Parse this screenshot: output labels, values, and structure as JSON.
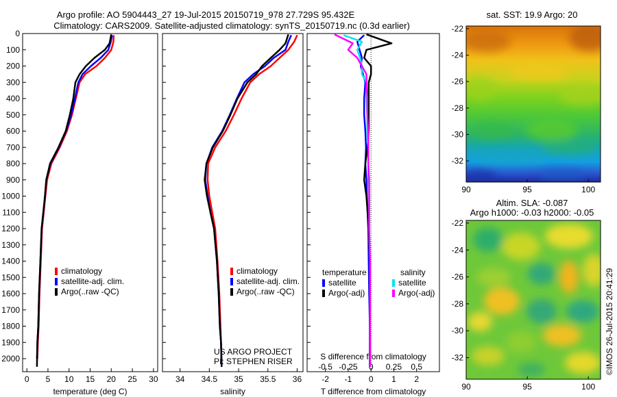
{
  "title": {
    "line1": "Argo profile: AO 5904443_27 19-Jul-2015 20150719_978 27.729S 95.432E",
    "line2": "Climatology: CARS2009. Satellite-adjusted climatology: synTS_20150719.nc (0.3d earlier)"
  },
  "colors": {
    "climatology": "#ff0000",
    "satellite": "#0000ff",
    "argo": "#000000",
    "sal_sat": "#00e5ee",
    "sal_argo": "#ff00ff"
  },
  "chart_data": [
    {
      "type": "line",
      "xlabel": "temperature (deg C)",
      "ylabel": "",
      "xlim": [
        -1,
        31
      ],
      "ylim": [
        2080,
        0
      ],
      "y_reversed": true,
      "xticks": [
        0,
        5,
        10,
        15,
        20,
        25,
        30
      ],
      "yticks": [
        0,
        100,
        200,
        300,
        400,
        500,
        600,
        700,
        800,
        900,
        1000,
        1100,
        1200,
        1300,
        1400,
        1500,
        1600,
        1700,
        1800,
        1900,
        2000
      ],
      "legend": [
        "climatology",
        "satellite-adj. clim.",
        "Argo(..raw -QC)"
      ],
      "series": [
        {
          "name": "climatology",
          "color": "#ff0000",
          "x": [
            20.6,
            20.5,
            20.0,
            18.5,
            16.5,
            13.8,
            12.5,
            11.6,
            10.7,
            9.5,
            7.8,
            5.8,
            4.8,
            4.4,
            4.0,
            3.6,
            3.3,
            3.0,
            2.8,
            2.6,
            2.5
          ],
          "y": [
            10,
            50,
            100,
            150,
            200,
            250,
            300,
            400,
            500,
            600,
            700,
            800,
            900,
            1000,
            1100,
            1200,
            1400,
            1600,
            1800,
            1900,
            2000
          ]
        },
        {
          "name": "satellite-adj. clim.",
          "color": "#0000ff",
          "x": [
            20.2,
            19.9,
            19.3,
            17.5,
            15.2,
            13.2,
            12.2,
            11.4,
            10.5,
            9.3,
            7.6,
            5.6,
            4.6,
            4.3,
            3.9,
            3.5,
            3.2,
            2.9,
            2.7,
            2.5,
            2.4
          ],
          "y": [
            10,
            50,
            100,
            150,
            200,
            250,
            300,
            400,
            500,
            600,
            700,
            800,
            900,
            1000,
            1100,
            1200,
            1400,
            1600,
            1800,
            1900,
            2000
          ]
        },
        {
          "name": "Argo(..raw -QC)",
          "color": "#000000",
          "x": [
            20.0,
            19.6,
            18.5,
            16.0,
            14.0,
            12.5,
            11.5,
            11.0,
            10.2,
            9.2,
            7.5,
            5.5,
            4.6,
            4.3,
            3.9,
            3.5,
            3.2,
            2.9,
            2.7,
            2.5,
            2.4
          ],
          "y": [
            5,
            60,
            100,
            150,
            200,
            250,
            300,
            400,
            500,
            600,
            700,
            800,
            900,
            1000,
            1100,
            1200,
            1400,
            1600,
            1800,
            1900,
            2050
          ]
        }
      ]
    },
    {
      "type": "line",
      "xlabel": "salinity",
      "xlim": [
        33.7,
        36.1
      ],
      "ylim": [
        2080,
        0
      ],
      "y_reversed": true,
      "xticks": [
        34,
        34.5,
        35,
        35.5,
        36
      ],
      "legend": [
        "climatology",
        "satellite-adj. clim.",
        "Argo(..raw -QC)"
      ],
      "annotation": [
        "US ARGO PROJECT",
        "PI: STEPHEN RISER"
      ],
      "series": [
        {
          "name": "climatology",
          "color": "#ff0000",
          "x": [
            36.0,
            35.95,
            35.85,
            35.7,
            35.55,
            35.35,
            35.2,
            35.05,
            34.92,
            34.78,
            34.6,
            34.48,
            34.47,
            34.5,
            34.55,
            34.6,
            34.64,
            34.67,
            34.69,
            34.7,
            34.71
          ],
          "y": [
            10,
            50,
            100,
            150,
            200,
            250,
            300,
            400,
            500,
            600,
            700,
            800,
            900,
            1000,
            1100,
            1200,
            1400,
            1600,
            1800,
            1900,
            2050
          ]
        },
        {
          "name": "satellite-adj. clim.",
          "color": "#0000ff",
          "x": [
            35.9,
            35.85,
            35.8,
            35.6,
            35.45,
            35.25,
            35.1,
            34.97,
            34.85,
            34.72,
            34.55,
            34.45,
            34.43,
            34.47,
            34.52,
            34.58,
            34.63,
            34.66,
            34.68,
            34.7,
            34.71
          ],
          "y": [
            10,
            50,
            100,
            150,
            200,
            250,
            300,
            400,
            500,
            600,
            700,
            800,
            900,
            1000,
            1100,
            1200,
            1400,
            1600,
            1800,
            1900,
            2050
          ]
        },
        {
          "name": "Argo(..raw -QC)",
          "color": "#000000",
          "x": [
            35.85,
            35.8,
            35.7,
            35.55,
            35.4,
            35.3,
            35.15,
            34.98,
            34.86,
            34.73,
            34.56,
            34.45,
            34.42,
            34.46,
            34.52,
            34.58,
            34.63,
            34.66,
            34.68,
            34.7,
            34.71
          ],
          "y": [
            5,
            60,
            100,
            150,
            200,
            250,
            300,
            400,
            500,
            600,
            700,
            800,
            900,
            1000,
            1100,
            1200,
            1400,
            1600,
            1800,
            1900,
            2050
          ]
        }
      ]
    },
    {
      "type": "line",
      "xlabel": "T difference from climatology",
      "x2label": "S difference from climatology",
      "xlim": [
        -2.8,
        3.0
      ],
      "ylim": [
        2080,
        0
      ],
      "y_reversed": true,
      "xticks": [
        -2,
        -1,
        0,
        1,
        2
      ],
      "x2ticks": [
        {
          "v": -0.5,
          "label": "-0.5"
        },
        {
          "v": -0.25,
          "label": "-0.25"
        },
        {
          "v": 0,
          "label": "0"
        },
        {
          "v": 0.25,
          "label": "0.25"
        },
        {
          "v": 0.5,
          "label": "0.5"
        }
      ],
      "legend_t_title": "temperature",
      "legend_s_title": "salinity",
      "legend": [
        "satellite",
        "Argo(-adj)",
        "satellite",
        "Argo(-adj)"
      ],
      "series": [
        {
          "name": "satellite",
          "group": "temperature",
          "color": "#0000ff",
          "x": [
            -0.3,
            -0.6,
            -0.5,
            -0.4,
            -0.45,
            -0.35,
            -0.25,
            -0.3,
            -0.3,
            -0.25,
            -0.22,
            -0.25,
            -0.2,
            -0.18,
            -0.15,
            -0.12,
            -0.1,
            -0.08,
            -0.05,
            -0.05,
            -0.05
          ],
          "y": [
            10,
            50,
            100,
            150,
            200,
            250,
            300,
            400,
            500,
            600,
            700,
            800,
            900,
            1000,
            1100,
            1200,
            1400,
            1600,
            1800,
            1900,
            2050
          ]
        },
        {
          "name": "Argo(-adj)",
          "group": "temperature",
          "color": "#000000",
          "x": [
            -0.2,
            0.9,
            -0.2,
            -0.3,
            0.0,
            0.0,
            -0.1,
            -0.1,
            -0.1,
            -0.1,
            -0.15,
            -0.25,
            -0.3,
            -0.2,
            -0.15,
            -0.1,
            -0.05,
            -0.05,
            -0.05,
            -0.05,
            -0.05
          ],
          "y": [
            5,
            60,
            100,
            150,
            200,
            250,
            300,
            400,
            500,
            600,
            700,
            800,
            900,
            1000,
            1100,
            1200,
            1400,
            1600,
            1800,
            1900,
            2050
          ]
        },
        {
          "name": "satellite",
          "group": "salinity",
          "color": "#00e5ee",
          "x": [
            -0.3,
            -0.1,
            -0.15,
            -0.12,
            -0.1,
            -0.1,
            -0.05,
            -0.05,
            -0.04,
            -0.04,
            -0.03,
            -0.03,
            -0.03,
            -0.02,
            -0.02,
            -0.02,
            -0.01,
            -0.01,
            -0.01,
            -0.01,
            -0.01
          ],
          "y": [
            10,
            50,
            100,
            150,
            200,
            250,
            300,
            400,
            500,
            600,
            700,
            800,
            900,
            1000,
            1100,
            1200,
            1400,
            1600,
            1800,
            1900,
            2050
          ]
        },
        {
          "name": "Argo(-adj)",
          "group": "salinity",
          "color": "#ff00ff",
          "x": [
            -0.4,
            -0.2,
            -0.25,
            -0.15,
            -0.1,
            -0.05,
            -0.05,
            -0.04,
            -0.04,
            -0.03,
            -0.03,
            -0.03,
            -0.02,
            -0.02,
            -0.02,
            -0.02,
            -0.01,
            -0.01,
            -0.01,
            -0.01,
            -0.01
          ],
          "y": [
            5,
            60,
            100,
            150,
            200,
            250,
            300,
            400,
            500,
            600,
            700,
            800,
            900,
            1000,
            1100,
            1200,
            1400,
            1600,
            1800,
            1900,
            2050
          ]
        }
      ]
    },
    {
      "type": "heatmap",
      "title": "sat. SST: 19.9 Argo: 20",
      "xlim": [
        90,
        101
      ],
      "ylim": [
        -33.6,
        -21.8
      ],
      "xticks": [
        90,
        95,
        100
      ],
      "yticks": [
        -22,
        -24,
        -26,
        -28,
        -30,
        -32
      ]
    },
    {
      "type": "heatmap",
      "title": "Altim. SLA: -0.087",
      "subtitle": "Argo h1000: -0.03 h2000: -0.05",
      "xlim": [
        90,
        101
      ],
      "ylim": [
        -33.6,
        -21.8
      ],
      "xticks": [
        90,
        95,
        100
      ],
      "yticks": [
        -22,
        -24,
        -26,
        -28,
        -30,
        -32
      ]
    }
  ],
  "stamp": "©IMOS 26-Jul-2015 20:41:29"
}
